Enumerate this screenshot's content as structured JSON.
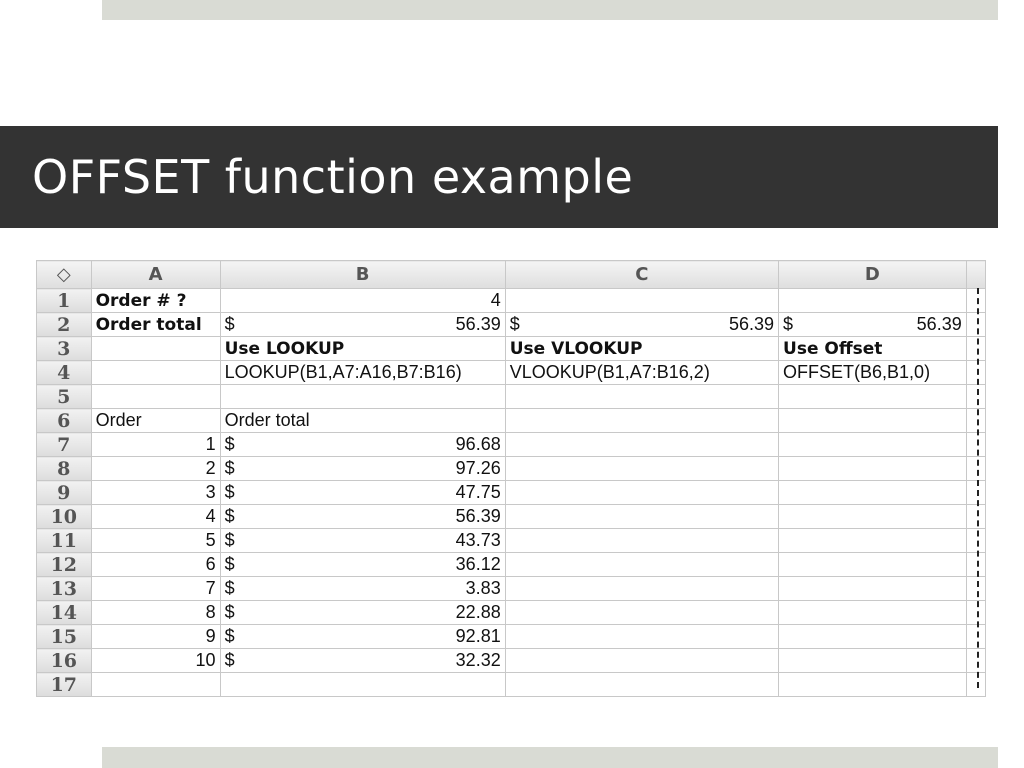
{
  "slide": {
    "title": "OFFSET function example"
  },
  "sheet": {
    "corner_icon": "select-all-diamond-icon",
    "columns": [
      "A",
      "B",
      "C",
      "D"
    ],
    "rows": [
      {
        "n": "1",
        "a": "Order # ?",
        "b": "4"
      },
      {
        "n": "2",
        "a": "Order total",
        "b_cur": "$",
        "b": "56.39",
        "c_cur": "$",
        "c": "56.39",
        "d_cur": "$",
        "d": "56.39"
      },
      {
        "n": "3",
        "b": "Use LOOKUP",
        "c": "Use VLOOKUP",
        "d": "Use Offset"
      },
      {
        "n": "4",
        "b": "LOOKUP(B1,A7:A16,B7:B16)",
        "c": "VLOOKUP(B1,A7:B16,2)",
        "d": "OFFSET(B6,B1,0)"
      },
      {
        "n": "5"
      },
      {
        "n": "6",
        "a": "Order",
        "b": "Order total"
      },
      {
        "n": "7",
        "a": "1",
        "b_cur": "$",
        "b": "96.68"
      },
      {
        "n": "8",
        "a": "2",
        "b_cur": "$",
        "b": "97.26"
      },
      {
        "n": "9",
        "a": "3",
        "b_cur": "$",
        "b": "47.75"
      },
      {
        "n": "10",
        "a": "4",
        "b_cur": "$",
        "b": "56.39"
      },
      {
        "n": "11",
        "a": "5",
        "b_cur": "$",
        "b": "43.73"
      },
      {
        "n": "12",
        "a": "6",
        "b_cur": "$",
        "b": "36.12"
      },
      {
        "n": "13",
        "a": "7",
        "b_cur": "$",
        "b": "3.83"
      },
      {
        "n": "14",
        "a": "8",
        "b_cur": "$",
        "b": "22.88"
      },
      {
        "n": "15",
        "a": "9",
        "b_cur": "$",
        "b": "92.81"
      },
      {
        "n": "16",
        "a": "10",
        "b_cur": "$",
        "b": "32.32"
      },
      {
        "n": "17"
      }
    ]
  }
}
